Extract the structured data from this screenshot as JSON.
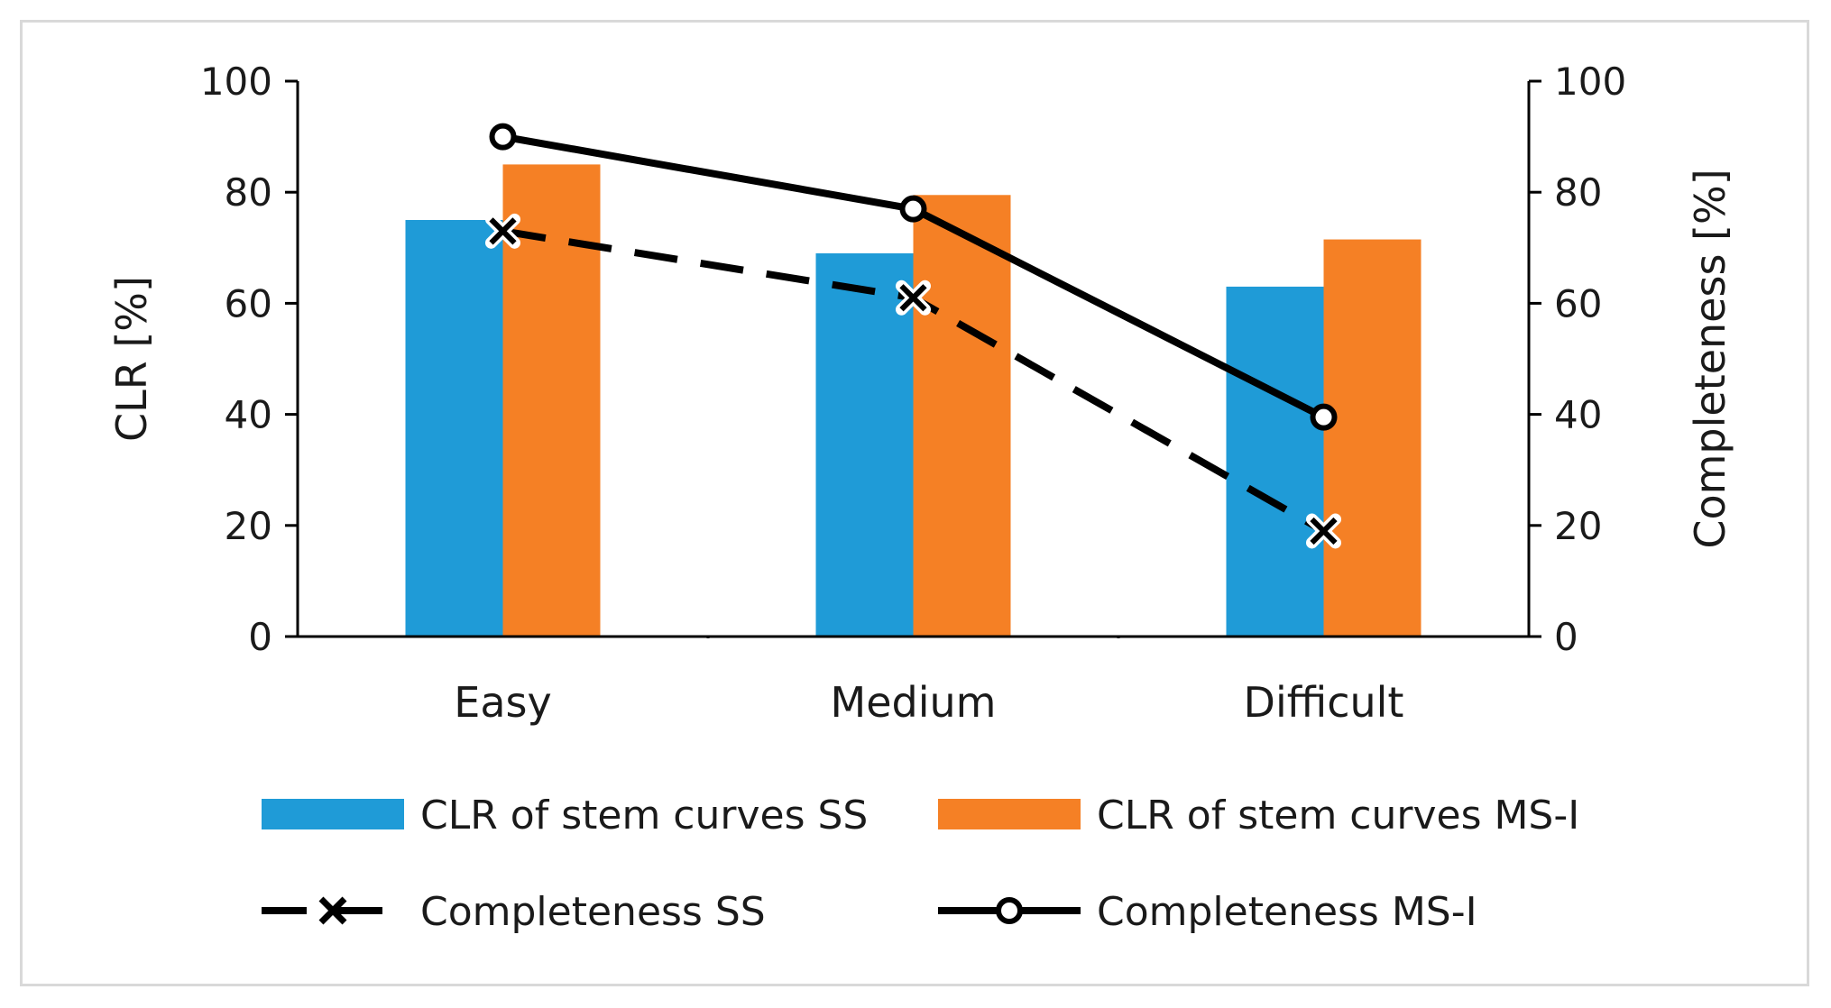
{
  "chart_data": {
    "type": "bar",
    "categories": [
      "Easy",
      "Medium",
      "Difficult"
    ],
    "series": [
      {
        "name": "CLR of stem curves SS",
        "kind": "bar",
        "axis": "left",
        "color": "#1f9bd7",
        "values": [
          75,
          69,
          63
        ]
      },
      {
        "name": "CLR of stem curves MS-I",
        "kind": "bar",
        "axis": "left",
        "color": "#f58025",
        "values": [
          85,
          79.5,
          71.5
        ]
      },
      {
        "name": "Completeness SS",
        "kind": "line",
        "axis": "right",
        "style": "dashed",
        "marker": "x",
        "color": "#000000",
        "values": [
          73,
          61,
          19
        ]
      },
      {
        "name": "Completeness MS-I",
        "kind": "line",
        "axis": "right",
        "style": "solid",
        "marker": "circle",
        "color": "#000000",
        "values": [
          90,
          77,
          39.5
        ]
      }
    ],
    "ylabel": "CLR [%]",
    "y2label": "Completeness [%]",
    "ylim": [
      0,
      100
    ],
    "y2lim": [
      0,
      100
    ],
    "yticks": [
      "0",
      "20",
      "40",
      "60",
      "80",
      "100"
    ],
    "y2ticks": [
      "0",
      "20",
      "40",
      "60",
      "80",
      "100"
    ],
    "legend_position": "bottom",
    "grid": false
  }
}
